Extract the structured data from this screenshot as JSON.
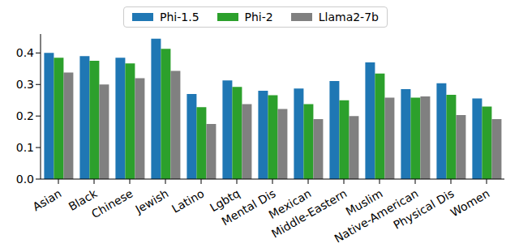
{
  "chart_data": {
    "type": "bar",
    "categories": [
      "Asian",
      "Black",
      "Chinese",
      "Jewish",
      "Latino",
      "Lgbtq",
      "Mental Dis",
      "Mexican",
      "Middle-Eastern",
      "Muslim",
      "Native-American",
      "Physical Dis",
      "Women"
    ],
    "series": [
      {
        "name": "Phi-1.5",
        "color": "#1f77b4",
        "values": [
          0.4,
          0.39,
          0.385,
          0.445,
          0.27,
          0.313,
          0.28,
          0.287,
          0.311,
          0.37,
          0.285,
          0.304,
          0.256
        ]
      },
      {
        "name": "Phi-2",
        "color": "#2ca02c",
        "values": [
          0.385,
          0.375,
          0.367,
          0.413,
          0.228,
          0.292,
          0.266,
          0.238,
          0.25,
          0.335,
          0.258,
          0.267,
          0.23
        ]
      },
      {
        "name": "Llama2-7b",
        "color": "#808080",
        "values": [
          0.338,
          0.3,
          0.32,
          0.343,
          0.175,
          0.238,
          0.222,
          0.19,
          0.2,
          0.258,
          0.262,
          0.203,
          0.19
        ]
      }
    ],
    "ylim": [
      0,
      0.46
    ],
    "yticks": [
      {
        "value": 0,
        "label": "0.0"
      },
      0.1,
      0.2,
      0.3,
      0.4
    ],
    "grid": false,
    "legend": "top"
  }
}
